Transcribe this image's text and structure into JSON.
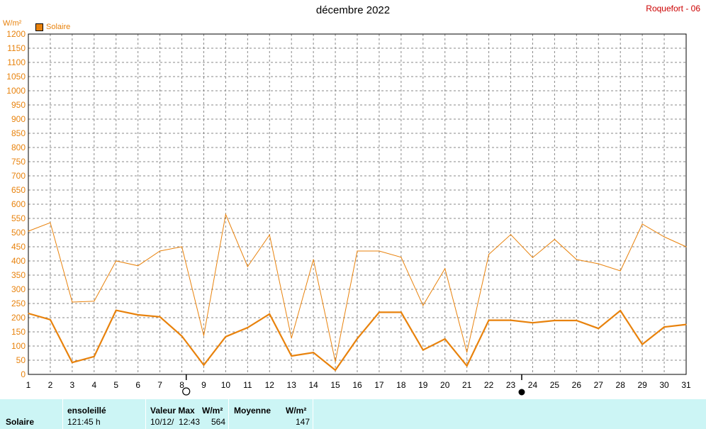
{
  "header": {
    "title": "décembre 2022",
    "station": "Roquefort - 06"
  },
  "legend": {
    "unit": "W/m²",
    "series_label": "Solaire"
  },
  "colors": {
    "series": "#e8820c",
    "grid": "#888888",
    "footer_bg": "#ccf5f5"
  },
  "moon_markers": {
    "full_moon_icon": "full-moon-icon",
    "new_moon_icon": "new-moon-icon"
  },
  "chart_data": {
    "type": "line",
    "x": [
      1,
      2,
      3,
      4,
      5,
      6,
      7,
      8,
      9,
      10,
      11,
      12,
      13,
      14,
      15,
      16,
      17,
      18,
      19,
      20,
      21,
      22,
      23,
      24,
      25,
      26,
      27,
      28,
      29,
      30,
      31
    ],
    "xlim": [
      1,
      31
    ],
    "ylim": [
      0,
      1200
    ],
    "y_ticks": [
      0,
      50,
      100,
      150,
      200,
      250,
      300,
      350,
      400,
      450,
      500,
      550,
      600,
      650,
      700,
      750,
      800,
      850,
      900,
      950,
      1000,
      1050,
      1100,
      1150,
      1200
    ],
    "ylabel": "W/m²",
    "title": "décembre 2022",
    "grid": true,
    "legend_position": "top-left",
    "series": [
      {
        "name": "Solaire",
        "role": "max",
        "values": [
          505,
          535,
          255,
          258,
          400,
          383,
          435,
          450,
          137,
          564,
          380,
          492,
          128,
          405,
          45,
          435,
          435,
          413,
          243,
          373,
          78,
          423,
          493,
          412,
          476,
          405,
          390,
          365,
          530,
          485,
          450
        ]
      },
      {
        "name": "Solaire",
        "role": "mean",
        "values": [
          215,
          193,
          42,
          63,
          226,
          210,
          203,
          135,
          33,
          133,
          165,
          213,
          65,
          77,
          15,
          126,
          219,
          219,
          86,
          125,
          30,
          191,
          191,
          182,
          190,
          190,
          162,
          225,
          106,
          167,
          176
        ]
      }
    ]
  },
  "footer": {
    "row_label": "Solaire",
    "sunshine_header": "ensoleillé",
    "sunshine_value": "121:45 h",
    "max_header": "Valeur Max",
    "max_unit": "W/m²",
    "max_date": "10/12/  12:43",
    "max_value": "564",
    "mean_header": "Moyenne",
    "mean_unit": "W/m²",
    "mean_value": "147"
  }
}
